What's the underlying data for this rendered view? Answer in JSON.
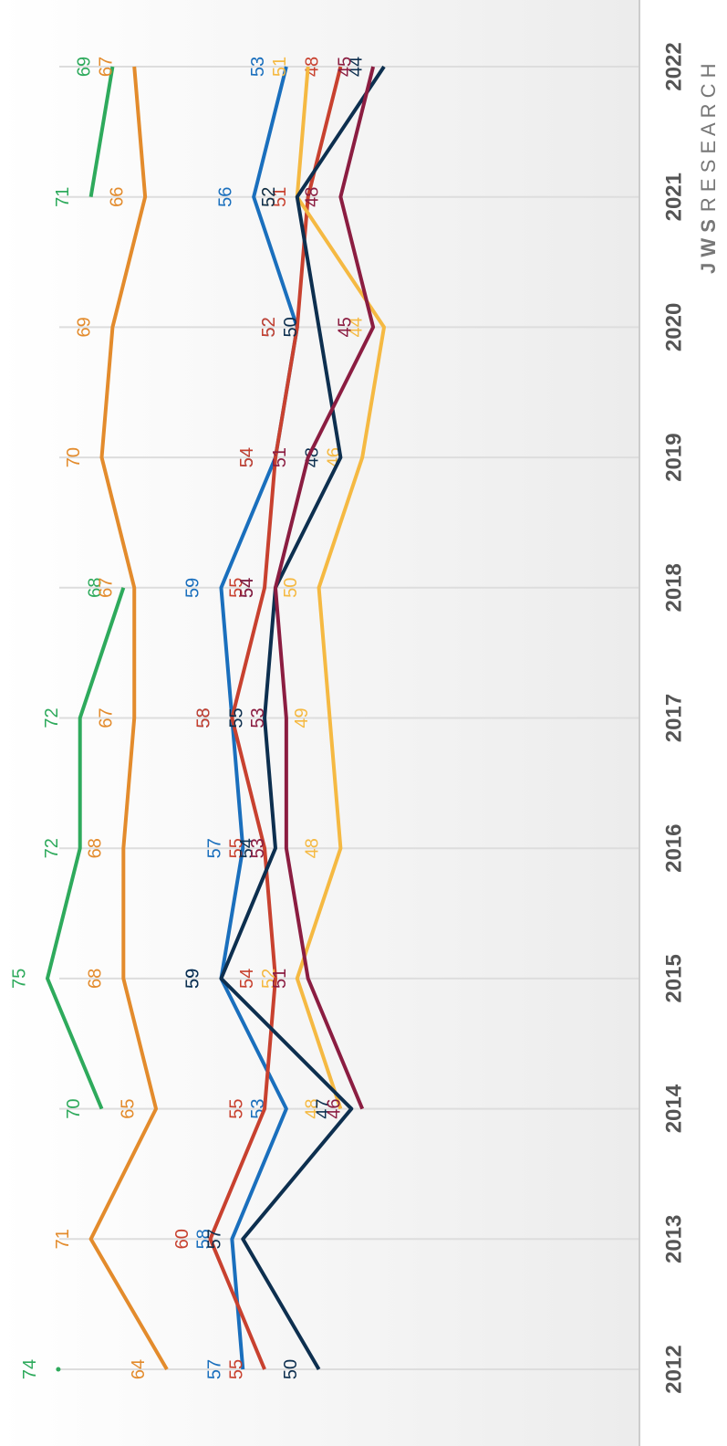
{
  "chart_data": {
    "type": "line",
    "categories": [
      "2012",
      "2013",
      "2014",
      "2015",
      "2016",
      "2017",
      "2018",
      "2019",
      "2020",
      "2021",
      "2022"
    ],
    "series": [
      {
        "name": "Green",
        "color": "#2eaa5c",
        "values": [
          74,
          null,
          70,
          75,
          72,
          72,
          68,
          null,
          null,
          71,
          69
        ]
      },
      {
        "name": "Orange",
        "color": "#e38b2c",
        "values": [
          64,
          71,
          65,
          68,
          68,
          67,
          67,
          70,
          69,
          66,
          67
        ]
      },
      {
        "name": "Blue",
        "color": "#1a6fbd",
        "values": [
          57,
          58,
          53,
          59,
          57,
          58,
          59,
          54,
          52,
          56,
          53
        ]
      },
      {
        "name": "Red",
        "color": "#c8412f",
        "values": [
          55,
          60,
          55,
          54,
          55,
          58,
          55,
          54,
          52,
          51,
          48
        ]
      },
      {
        "name": "Yellow",
        "color": "#f5b942",
        "values": [
          null,
          null,
          48,
          52,
          48,
          49,
          50,
          46,
          44,
          52,
          51
        ]
      },
      {
        "name": "Navy",
        "color": "#0d2f4f",
        "values": [
          50,
          57,
          47,
          59,
          54,
          55,
          54,
          48,
          50,
          52,
          44
        ]
      },
      {
        "name": "Maroon",
        "color": "#8b1d41",
        "values": [
          null,
          null,
          46,
          51,
          53,
          53,
          54,
          51,
          45,
          48,
          45
        ]
      }
    ],
    "xlim": [
      75,
      44
    ],
    "grid": true,
    "logo": {
      "bold": "J W S",
      "light": "R E S E A R C H"
    }
  }
}
